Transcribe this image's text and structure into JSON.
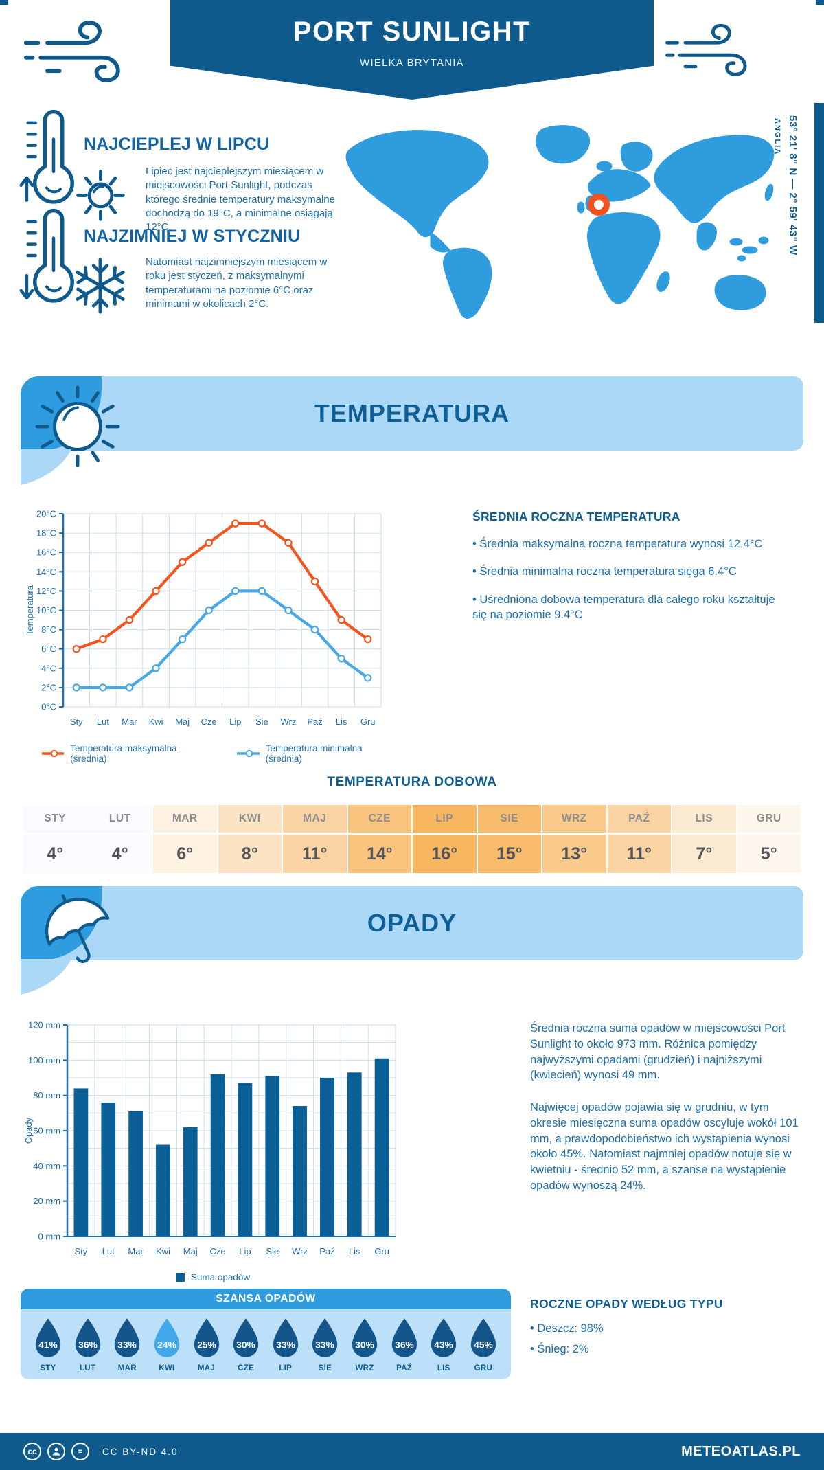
{
  "header": {
    "title": "PORT SUNLIGHT",
    "subtitle": "WIELKA BRYTANIA"
  },
  "map": {
    "coordinates": "53° 21' 8\" N — 2° 59' 43\" W",
    "region": "ANGLIA",
    "marker_color": "#F4511E",
    "land_color": "#2F9CDE"
  },
  "warmest": {
    "title": "NAJCIEPLEJ W LIPCU",
    "text": "Lipiec jest najcieplejszym miesiącem w miejscowości Port Sunlight, podczas którego średnie temperatury maksymalne dochodzą do 19°C, a minimalne osiągają 12°C."
  },
  "coldest": {
    "title": "NAJZIMNIEJ W STYCZNIU",
    "text": "Natomiast najzimniejszym miesiącem w roku jest styczeń, z maksymalnymi temperaturami na poziomie 6°C oraz minimami w okolicach 2°C."
  },
  "temperature_section": {
    "banner": "TEMPERATURA",
    "summary_title": "ŚREDNIA ROCZNA TEMPERATURA",
    "bullets": [
      "• Średnia maksymalna roczna temperatura wynosi 12.4°C",
      "• Średnia minimalna roczna temperatura sięga 6.4°C",
      "• Uśredniona dobowa temperatura dla całego roku kształtuje się na poziomie 9.4°C"
    ],
    "daily_title": "TEMPERATURA DOBOWA"
  },
  "daily_table": {
    "months": [
      "STY",
      "LUT",
      "MAR",
      "KWI",
      "MAJ",
      "CZE",
      "LIP",
      "SIE",
      "WRZ",
      "PAŹ",
      "LIS",
      "GRU"
    ],
    "values": [
      "4°",
      "4°",
      "6°",
      "8°",
      "11°",
      "14°",
      "16°",
      "15°",
      "13°",
      "11°",
      "7°",
      "5°"
    ],
    "cell_colors": [
      "#FAFBFE",
      "#FAFBFE",
      "#FDF2E2",
      "#FCE3C3",
      "#FAD3A2",
      "#F8C37D",
      "#F7B660",
      "#F7BB6B",
      "#F9CA8C",
      "#FAD3A2",
      "#FCEBD3",
      "#FDF6EC"
    ]
  },
  "chart_data": [
    {
      "type": "line",
      "title": "",
      "categories": [
        "Sty",
        "Lut",
        "Mar",
        "Kwi",
        "Maj",
        "Cze",
        "Lip",
        "Sie",
        "Wrz",
        "Paź",
        "Lis",
        "Gru"
      ],
      "series": [
        {
          "name": "Temperatura maksymalna (średnia)",
          "color": "#F4551F",
          "values": [
            6,
            7,
            9,
            12,
            15,
            17,
            19,
            19,
            17,
            13,
            9,
            7
          ]
        },
        {
          "name": "Temperatura minimalna (średnia)",
          "color": "#49A8E3",
          "values": [
            2,
            2,
            2,
            4,
            7,
            10,
            12,
            12,
            10,
            8,
            5,
            3
          ]
        }
      ],
      "xlabel": "",
      "ylabel": "Temperatura",
      "ylim": [
        0,
        20
      ],
      "ytick_step": 2,
      "ytick_suffix": "°C",
      "grid": true,
      "legend_position": "bottom",
      "grid_color": "#C9DEF0",
      "axis_color": "#1B6FAD"
    },
    {
      "type": "bar",
      "title": "",
      "categories": [
        "Sty",
        "Lut",
        "Mar",
        "Kwi",
        "Maj",
        "Cze",
        "Lip",
        "Sie",
        "Wrz",
        "Paź",
        "Lis",
        "Gru"
      ],
      "series": [
        {
          "name": "Suma opadów",
          "color": "#0B5F97",
          "values": [
            84,
            76,
            71,
            52,
            62,
            92,
            87,
            91,
            74,
            90,
            93,
            101
          ]
        }
      ],
      "xlabel": "",
      "ylabel": "Opady",
      "ylim": [
        0,
        120
      ],
      "ytick_step": 20,
      "ytick_minor": 10,
      "ytick_suffix": " mm",
      "grid": true,
      "legend_position": "bottom",
      "grid_color": "#C9DEF0",
      "axis_color": "#1B6FAD"
    }
  ],
  "precipitation_section": {
    "banner": "OPADY",
    "para1": "Średnia roczna suma opadów w miejscowości Port Sunlight to około 973 mm. Różnica pomiędzy najwyższymi opadami (grudzień) i najniższymi (kwiecień) wynosi 49 mm.",
    "para2": "Najwięcej opadów pojawia się w grudniu, w tym okresie miesięczna suma opadów oscyluje wokół 101 mm, a prawdopodobieństwo ich wystąpienia wynosi około 45%. Natomiast najmniej opadów notuje się w kwietniu - średnio 52 mm, a szanse na wystąpienie opadów wynoszą 24%.",
    "type_title": "ROCZNE OPADY WEDŁUG TYPU",
    "type_bullets": [
      "• Deszcz: 98%",
      "• Śnieg: 2%"
    ]
  },
  "rain_chance": {
    "title": "SZANSA OPADÓW",
    "months": [
      "STY",
      "LUT",
      "MAR",
      "KWI",
      "MAJ",
      "CZE",
      "LIP",
      "SIE",
      "WRZ",
      "PAŹ",
      "LIS",
      "GRU"
    ],
    "values": [
      "41%",
      "36%",
      "33%",
      "24%",
      "25%",
      "30%",
      "33%",
      "33%",
      "30%",
      "36%",
      "43%",
      "45%"
    ],
    "highlight_index": 3,
    "drop_color": "#14568C",
    "drop_highlight_color": "#41A9E9"
  },
  "footer": {
    "license": "CC BY-ND 4.0",
    "brand": "METEOATLAS.PL"
  },
  "colors": {
    "dark_blue": "#0E5A8C",
    "heading_blue": "#1263A5",
    "body_blue": "#1E6FAE",
    "banner_light": "#ACD8F7",
    "medium_blue": "#2F9CDF",
    "grid": "#C9DEF0",
    "max_line": "#F4551F",
    "min_line": "#49A8E3",
    "bar": "#0B5F97",
    "table_text": "#56565A",
    "table_header_text": "#8C8C8C"
  }
}
